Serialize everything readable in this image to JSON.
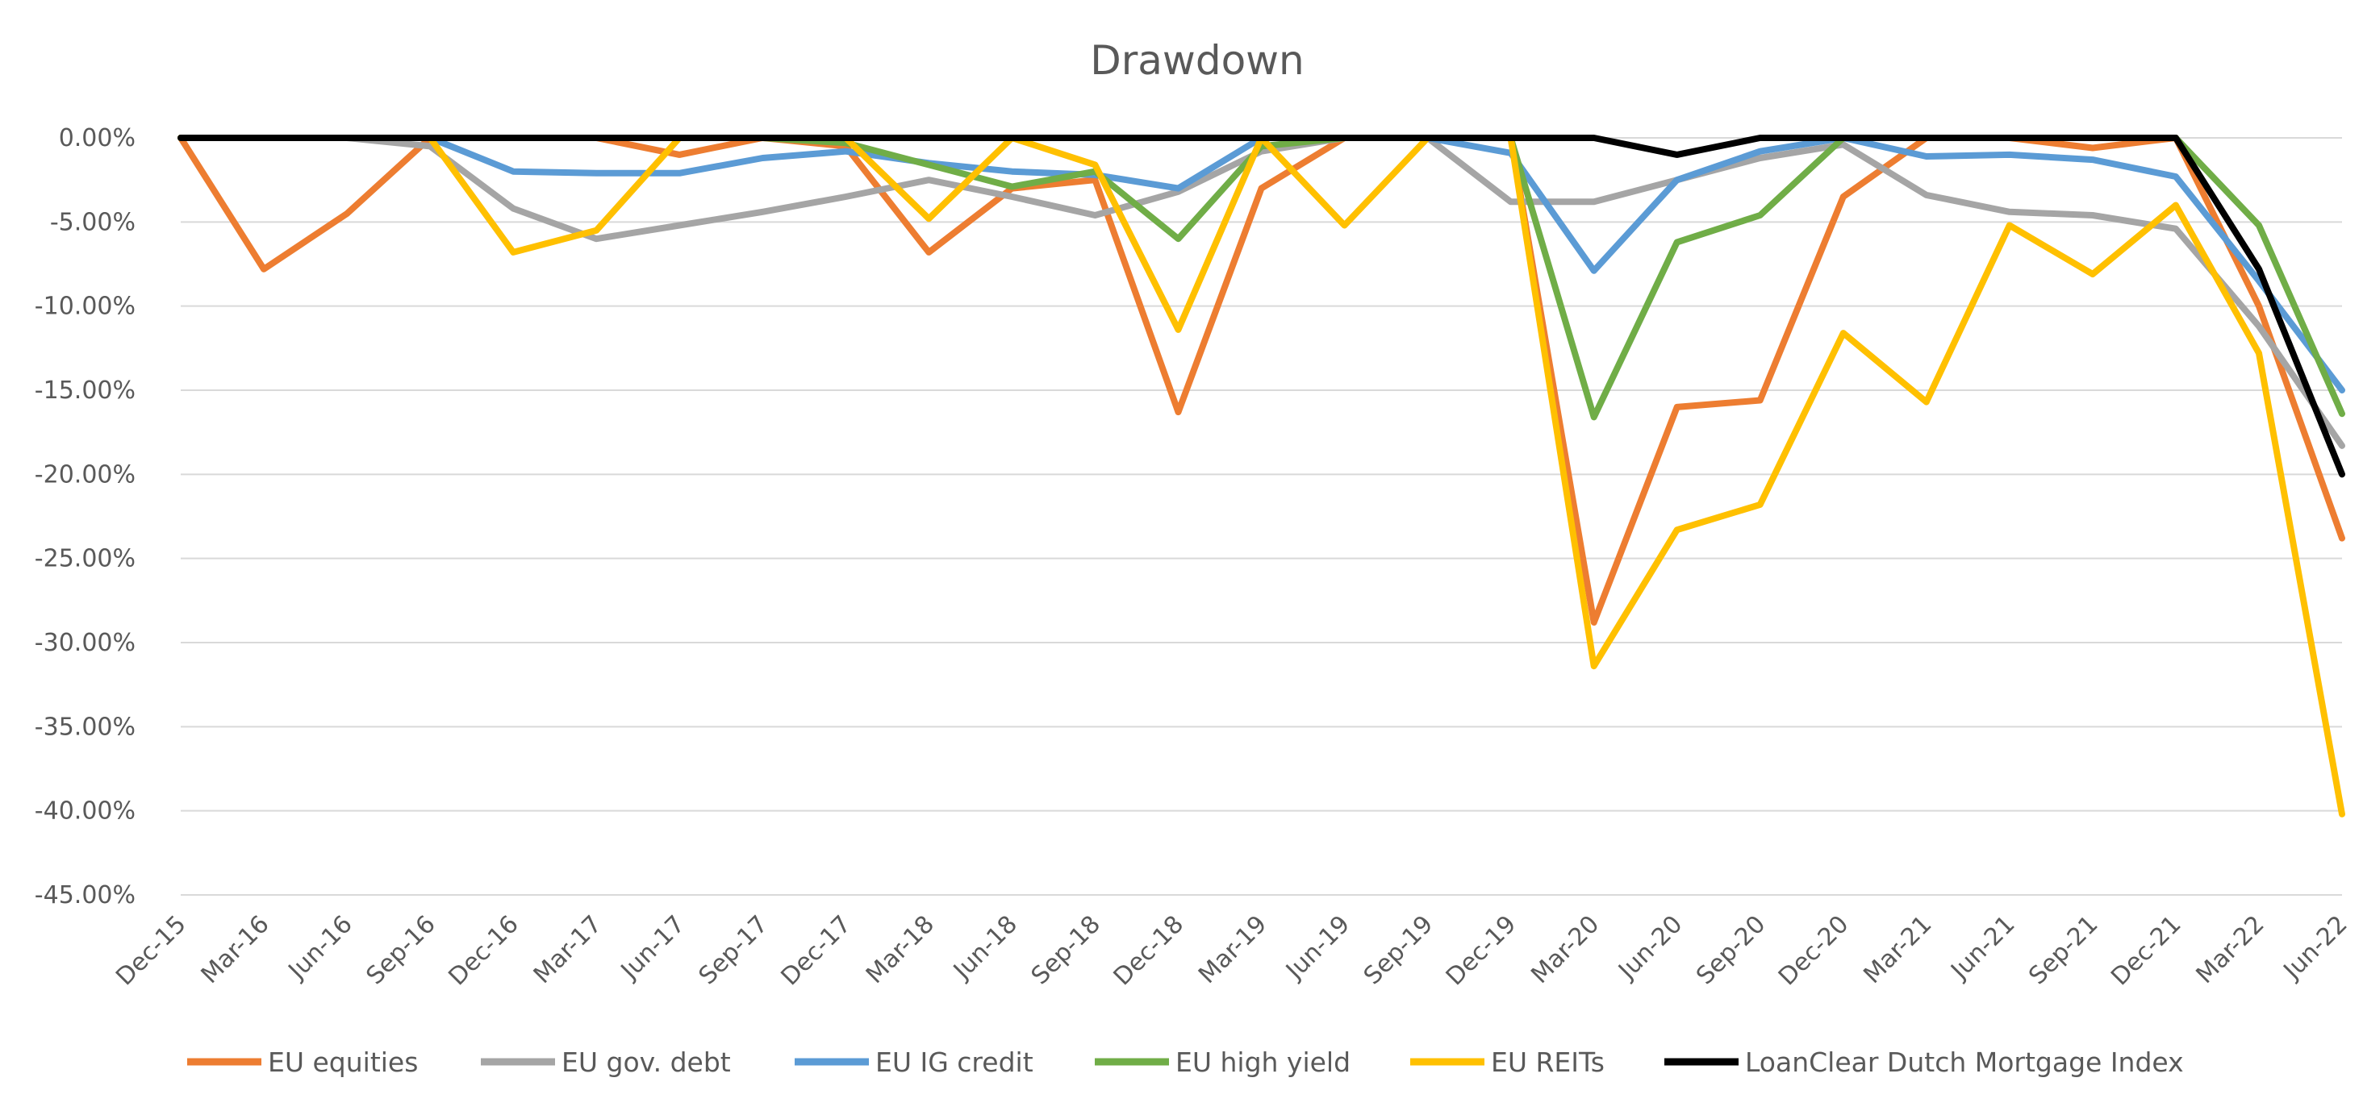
{
  "chart_data": {
    "type": "line",
    "title": "Drawdown",
    "xlabel": "",
    "ylabel": "",
    "ylim": [
      -45,
      0
    ],
    "yticks": [
      0,
      -5,
      -10,
      -15,
      -20,
      -25,
      -30,
      -35,
      -40,
      -45
    ],
    "ytick_labels": [
      "0.00%",
      "-5.00%",
      "-10.00%",
      "-15.00%",
      "-20.00%",
      "-25.00%",
      "-30.00%",
      "-35.00%",
      "-40.00%",
      "-45.00%"
    ],
    "categories": [
      "Dec-15",
      "Mar-16",
      "Jun-16",
      "Sep-16",
      "Dec-16",
      "Mar-17",
      "Jun-17",
      "Sep-17",
      "Dec-17",
      "Mar-18",
      "Jun-18",
      "Sep-18",
      "Dec-18",
      "Mar-19",
      "Jun-19",
      "Sep-19",
      "Dec-19",
      "Mar-20",
      "Jun-20",
      "Sep-20",
      "Dec-20",
      "Mar-21",
      "Jun-21",
      "Sep-21",
      "Dec-21",
      "Mar-22",
      "Jun-22"
    ],
    "grid": true,
    "legend_position": "bottom",
    "series": [
      {
        "name": "EU equities",
        "color": "#ed7d31",
        "values": [
          0,
          -7.8,
          -4.5,
          0,
          0,
          0,
          -1.0,
          0,
          -0.5,
          -6.8,
          -3.0,
          -2.5,
          -16.3,
          -3.0,
          0,
          0,
          0,
          -28.8,
          -16.0,
          -15.6,
          -3.5,
          0,
          0,
          -0.6,
          0,
          -10.0,
          -23.8
        ]
      },
      {
        "name": "EU gov. debt",
        "color": "#a5a5a5",
        "values": [
          0,
          0,
          0,
          -0.5,
          -4.2,
          -6.0,
          -5.2,
          -4.4,
          -3.5,
          -2.5,
          -3.5,
          -4.6,
          -3.2,
          -0.8,
          0,
          0,
          -3.8,
          -3.8,
          -2.5,
          -1.2,
          -0.4,
          -3.4,
          -4.4,
          -4.6,
          -5.4,
          -11.2,
          -18.3
        ]
      },
      {
        "name": "EU IG credit",
        "color": "#5b9bd5",
        "values": [
          0,
          0,
          0,
          0,
          -2.0,
          -2.1,
          -2.1,
          -1.2,
          -0.8,
          -1.5,
          -2.0,
          -2.2,
          -3.0,
          0,
          0,
          0,
          -0.9,
          -7.9,
          -2.5,
          -0.8,
          0,
          -1.1,
          -1.0,
          -1.3,
          -2.3,
          -8.5,
          -15.0
        ]
      },
      {
        "name": "EU high yield",
        "color": "#70ad47",
        "values": [
          0,
          0,
          0,
          0,
          0,
          0,
          0,
          0,
          -0.3,
          -1.6,
          -2.9,
          -2.0,
          -6.0,
          -0.5,
          0,
          0,
          0,
          -16.6,
          -6.2,
          -4.6,
          0,
          0,
          0,
          0,
          0,
          -5.2,
          -16.4
        ]
      },
      {
        "name": "EU REITs",
        "color": "#ffc000",
        "values": [
          0,
          0,
          0,
          0,
          -6.8,
          -5.5,
          0,
          0,
          0,
          -4.8,
          0,
          -1.6,
          -11.4,
          0,
          -5.2,
          0,
          0,
          -31.4,
          -23.3,
          -21.8,
          -11.6,
          -15.7,
          -5.2,
          -8.1,
          -4.0,
          -12.8,
          -40.2
        ]
      },
      {
        "name": "LoanClear Dutch Mortgage Index",
        "color": "#000000",
        "values": [
          0,
          0,
          0,
          0,
          0,
          0,
          0,
          0,
          0,
          0,
          0,
          0,
          0,
          0,
          0,
          0,
          0,
          0,
          -1.0,
          0,
          0,
          0,
          0,
          0,
          0,
          -7.8,
          -20.0
        ]
      }
    ]
  }
}
